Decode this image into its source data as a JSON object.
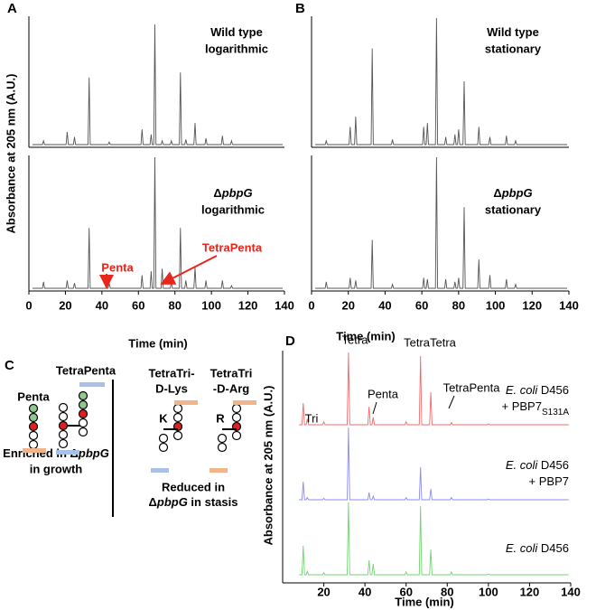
{
  "chart_data": [
    {
      "type": "line",
      "panel": "A",
      "title": [
        "Wild type"
      ],
      "subtitle": "logarithmic",
      "ylabel": "Absorbance at 205 nm (A.U.)",
      "x": [
        2,
        7.4,
        8,
        8.6,
        20.4,
        21,
        21.6,
        24.4,
        25,
        25.6,
        32.4,
        33,
        33.6,
        43.4,
        44,
        44.6,
        61.4,
        62,
        62.6,
        66.4,
        67,
        67.6,
        68.4,
        69,
        69.6,
        72.4,
        73,
        73.6,
        77.4,
        78,
        78.6,
        82.4,
        83,
        83.6,
        85.4,
        86,
        86.6,
        90.4,
        91,
        91.6,
        96.4,
        97,
        97.6,
        105.4,
        106,
        106.6,
        110.4,
        111,
        111.6,
        139
      ],
      "series": [
        {
          "color": "#555555",
          "values": [
            0,
            0,
            3,
            0,
            0,
            10,
            0,
            0,
            6,
            0,
            0,
            53,
            0,
            0,
            2,
            0,
            0,
            12,
            0,
            0,
            8,
            0,
            0,
            95,
            0,
            0,
            3,
            0,
            0,
            3,
            0,
            0,
            57,
            0,
            0,
            4,
            0,
            0,
            17,
            0,
            0,
            5,
            0,
            0,
            7,
            0,
            0,
            3,
            0,
            0
          ]
        }
      ],
      "xlim": [
        0,
        140
      ],
      "ylim": [
        0,
        100
      ]
    },
    {
      "type": "line",
      "title": [
        "Δ",
        "pbpG"
      ],
      "subtitle": "logarithmic",
      "xlabel": "Time (min)",
      "annotations": [
        "Penta",
        "TetraPenta"
      ],
      "annotation_color": "#e8261b",
      "x": [
        2,
        7.4,
        8,
        8.6,
        20.4,
        21,
        21.6,
        24.4,
        25,
        25.6,
        32.4,
        33,
        33.6,
        43.4,
        44,
        44.6,
        61.4,
        62,
        62.6,
        66.4,
        67,
        67.6,
        68.4,
        69,
        69.6,
        72.4,
        73,
        73.6,
        77.4,
        78,
        78.6,
        82.4,
        83,
        83.6,
        85.4,
        86,
        86.6,
        90.4,
        91,
        91.6,
        96.4,
        97,
        97.6,
        105.4,
        106,
        106.6,
        110.4,
        111,
        111.6,
        139
      ],
      "series": [
        {
          "color": "#555555",
          "values": [
            0,
            0,
            5,
            0,
            0,
            6,
            0,
            0,
            4,
            0,
            0,
            46,
            0,
            0,
            4,
            0,
            0,
            10,
            0,
            0,
            13,
            0,
            0,
            100,
            0,
            0,
            15,
            0,
            0,
            5,
            0,
            0,
            46,
            0,
            0,
            6,
            0,
            0,
            16,
            0,
            0,
            6,
            0,
            0,
            6,
            0,
            0,
            2,
            0,
            0
          ]
        }
      ],
      "xlim": [
        0,
        140
      ],
      "ylim": [
        0,
        100
      ],
      "xticks": [
        0,
        20,
        40,
        60,
        80,
        100,
        120,
        140
      ]
    },
    {
      "type": "line",
      "panel": "B",
      "title": [
        "Wild type"
      ],
      "subtitle": "stationary",
      "x": [
        2,
        7.4,
        8,
        8.6,
        20.4,
        21,
        21.6,
        23.4,
        24,
        24.6,
        32.4,
        33,
        33.6,
        43.4,
        44,
        44.6,
        60.4,
        61,
        61.6,
        62.4,
        63,
        63.6,
        67.4,
        68,
        68.6,
        72.4,
        73,
        73.6,
        77.4,
        78,
        78.6,
        79.4,
        80,
        80.6,
        82.4,
        83,
        83.6,
        90.4,
        91,
        91.6,
        96.4,
        97,
        97.6,
        105.4,
        106,
        106.6,
        110.4,
        111,
        111.6,
        139
      ],
      "series": [
        {
          "color": "#555555",
          "values": [
            0,
            0,
            3,
            0,
            0,
            14,
            0,
            0,
            22,
            0,
            0,
            76,
            0,
            0,
            4,
            0,
            0,
            14,
            0,
            0,
            17,
            0,
            0,
            100,
            0,
            0,
            6,
            0,
            0,
            8,
            0,
            0,
            12,
            0,
            0,
            50,
            0,
            0,
            14,
            0,
            0,
            6,
            0,
            0,
            7,
            0,
            0,
            3,
            0,
            0
          ]
        }
      ],
      "xlim": [
        0,
        140
      ],
      "ylim": [
        0,
        100
      ]
    },
    {
      "type": "line",
      "title": [
        "Δ",
        "pbpG"
      ],
      "subtitle": "stationary",
      "xlabel": "Time (min)",
      "x": [
        2,
        7.4,
        8,
        8.6,
        20.4,
        21,
        21.6,
        23.4,
        24,
        24.6,
        32.4,
        33,
        33.6,
        43.4,
        44,
        44.6,
        60.4,
        61,
        61.6,
        62.4,
        63,
        63.6,
        67.4,
        68,
        68.6,
        72.4,
        73,
        73.6,
        77.4,
        78,
        78.6,
        79.4,
        80,
        80.6,
        82.4,
        83,
        83.6,
        90.4,
        91,
        91.6,
        96.4,
        97,
        97.6,
        105.4,
        106,
        106.6,
        110.4,
        111,
        111.6,
        139
      ],
      "series": [
        {
          "color": "#555555",
          "values": [
            0,
            0,
            5,
            0,
            0,
            8,
            0,
            0,
            6,
            0,
            0,
            37,
            0,
            0,
            3,
            0,
            0,
            8,
            0,
            0,
            7,
            0,
            0,
            100,
            0,
            0,
            7,
            0,
            0,
            5,
            0,
            0,
            8,
            0,
            0,
            62,
            0,
            0,
            22,
            0,
            0,
            10,
            0,
            0,
            7,
            0,
            0,
            3,
            0,
            0
          ]
        }
      ],
      "xlim": [
        0,
        140
      ],
      "ylim": [
        0,
        100
      ],
      "xticks": [
        0,
        20,
        40,
        60,
        80,
        100,
        120,
        140
      ]
    },
    {
      "type": "line",
      "panel": "D",
      "ylabel": "Absorbance at 205 nm (A.U.)",
      "xlabel": "Time (min)",
      "annotations": [
        "Tri",
        "Tetra",
        "Penta",
        "TetraTetra",
        "TetraPenta"
      ],
      "x": [
        8,
        9.4,
        10,
        10.6,
        11.4,
        12,
        12.6,
        19.4,
        20,
        20.6,
        31.4,
        32,
        32.6,
        41.4,
        42,
        42.6,
        43.4,
        44,
        44.6,
        59.4,
        60,
        60.6,
        66.4,
        67,
        67.6,
        71.4,
        72,
        72.6,
        81.4,
        82,
        82.6,
        99.4,
        100,
        100.6,
        139
      ],
      "series": [
        {
          "label": [
            [
              "E. coli",
              " D456"
            ],
            [
              "+ PBP7",
              "S131A"
            ]
          ],
          "color": "#f26b6b",
          "values": [
            0,
            0,
            30,
            0,
            0,
            8,
            0,
            0,
            4,
            0,
            0,
            100,
            0,
            0,
            25,
            0,
            0,
            10,
            0,
            0,
            4,
            0,
            0,
            95,
            0,
            0,
            45,
            0,
            0,
            3,
            0,
            0,
            1,
            0,
            0
          ]
        },
        {
          "label": [
            [
              "E. coli",
              " D456"
            ],
            [
              "+ PBP7"
            ]
          ],
          "color": "#8b8bf0",
          "values": [
            0,
            0,
            25,
            0,
            0,
            3,
            0,
            0,
            2,
            0,
            0,
            100,
            0,
            0,
            10,
            0,
            0,
            5,
            0,
            0,
            3,
            0,
            0,
            45,
            0,
            0,
            15,
            0,
            0,
            3,
            0,
            0,
            1,
            0,
            0
          ]
        },
        {
          "label": [
            [
              "E. coli",
              " D456"
            ]
          ],
          "color": "#6fd66f",
          "values": [
            0,
            0,
            40,
            0,
            0,
            5,
            0,
            0,
            3,
            0,
            0,
            100,
            0,
            0,
            20,
            0,
            0,
            15,
            0,
            0,
            4,
            0,
            0,
            95,
            0,
            0,
            35,
            0,
            0,
            4,
            0,
            0,
            1,
            0,
            0
          ]
        }
      ],
      "xlim": [
        0,
        140
      ],
      "ylim": [
        0,
        100
      ],
      "xticks": [
        20,
        40,
        60,
        80,
        100,
        120,
        140
      ]
    }
  ],
  "diagram": {
    "panel": "C",
    "texts": [
      "Penta",
      "TetraPenta",
      [
        "Enriched in Δ",
        "pbpG"
      ],
      "in growth",
      "TetraTri-",
      "D-Lys",
      "TetraTri",
      "-D-Arg",
      "K",
      "R",
      "Reduced in",
      [
        "Δ",
        "pbpG",
        " in stasis"
      ]
    ]
  }
}
